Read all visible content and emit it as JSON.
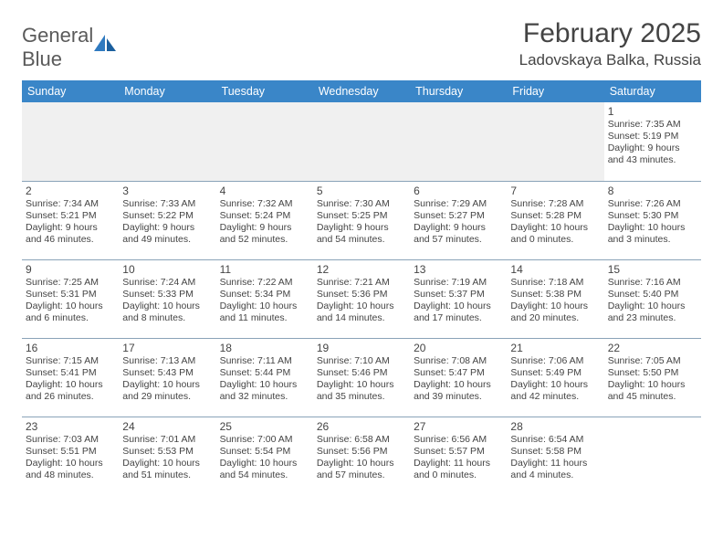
{
  "logo": {
    "part1": "General",
    "part2": "Blue"
  },
  "title": "February 2025",
  "location": "Ladovskaya Balka, Russia",
  "colors": {
    "header_bg": "#3a86c8",
    "header_fg": "#ffffff",
    "rule": "#8aa3b8",
    "logo_blue": "#2f7ac0"
  },
  "day_headers": [
    "Sunday",
    "Monday",
    "Tuesday",
    "Wednesday",
    "Thursday",
    "Friday",
    "Saturday"
  ],
  "weeks": [
    [
      null,
      null,
      null,
      null,
      null,
      null,
      {
        "n": "1",
        "sr": "Sunrise: 7:35 AM",
        "ss": "Sunset: 5:19 PM",
        "dl": "Daylight: 9 hours and 43 minutes."
      }
    ],
    [
      {
        "n": "2",
        "sr": "Sunrise: 7:34 AM",
        "ss": "Sunset: 5:21 PM",
        "dl": "Daylight: 9 hours and 46 minutes."
      },
      {
        "n": "3",
        "sr": "Sunrise: 7:33 AM",
        "ss": "Sunset: 5:22 PM",
        "dl": "Daylight: 9 hours and 49 minutes."
      },
      {
        "n": "4",
        "sr": "Sunrise: 7:32 AM",
        "ss": "Sunset: 5:24 PM",
        "dl": "Daylight: 9 hours and 52 minutes."
      },
      {
        "n": "5",
        "sr": "Sunrise: 7:30 AM",
        "ss": "Sunset: 5:25 PM",
        "dl": "Daylight: 9 hours and 54 minutes."
      },
      {
        "n": "6",
        "sr": "Sunrise: 7:29 AM",
        "ss": "Sunset: 5:27 PM",
        "dl": "Daylight: 9 hours and 57 minutes."
      },
      {
        "n": "7",
        "sr": "Sunrise: 7:28 AM",
        "ss": "Sunset: 5:28 PM",
        "dl": "Daylight: 10 hours and 0 minutes."
      },
      {
        "n": "8",
        "sr": "Sunrise: 7:26 AM",
        "ss": "Sunset: 5:30 PM",
        "dl": "Daylight: 10 hours and 3 minutes."
      }
    ],
    [
      {
        "n": "9",
        "sr": "Sunrise: 7:25 AM",
        "ss": "Sunset: 5:31 PM",
        "dl": "Daylight: 10 hours and 6 minutes."
      },
      {
        "n": "10",
        "sr": "Sunrise: 7:24 AM",
        "ss": "Sunset: 5:33 PM",
        "dl": "Daylight: 10 hours and 8 minutes."
      },
      {
        "n": "11",
        "sr": "Sunrise: 7:22 AM",
        "ss": "Sunset: 5:34 PM",
        "dl": "Daylight: 10 hours and 11 minutes."
      },
      {
        "n": "12",
        "sr": "Sunrise: 7:21 AM",
        "ss": "Sunset: 5:36 PM",
        "dl": "Daylight: 10 hours and 14 minutes."
      },
      {
        "n": "13",
        "sr": "Sunrise: 7:19 AM",
        "ss": "Sunset: 5:37 PM",
        "dl": "Daylight: 10 hours and 17 minutes."
      },
      {
        "n": "14",
        "sr": "Sunrise: 7:18 AM",
        "ss": "Sunset: 5:38 PM",
        "dl": "Daylight: 10 hours and 20 minutes."
      },
      {
        "n": "15",
        "sr": "Sunrise: 7:16 AM",
        "ss": "Sunset: 5:40 PM",
        "dl": "Daylight: 10 hours and 23 minutes."
      }
    ],
    [
      {
        "n": "16",
        "sr": "Sunrise: 7:15 AM",
        "ss": "Sunset: 5:41 PM",
        "dl": "Daylight: 10 hours and 26 minutes."
      },
      {
        "n": "17",
        "sr": "Sunrise: 7:13 AM",
        "ss": "Sunset: 5:43 PM",
        "dl": "Daylight: 10 hours and 29 minutes."
      },
      {
        "n": "18",
        "sr": "Sunrise: 7:11 AM",
        "ss": "Sunset: 5:44 PM",
        "dl": "Daylight: 10 hours and 32 minutes."
      },
      {
        "n": "19",
        "sr": "Sunrise: 7:10 AM",
        "ss": "Sunset: 5:46 PM",
        "dl": "Daylight: 10 hours and 35 minutes."
      },
      {
        "n": "20",
        "sr": "Sunrise: 7:08 AM",
        "ss": "Sunset: 5:47 PM",
        "dl": "Daylight: 10 hours and 39 minutes."
      },
      {
        "n": "21",
        "sr": "Sunrise: 7:06 AM",
        "ss": "Sunset: 5:49 PM",
        "dl": "Daylight: 10 hours and 42 minutes."
      },
      {
        "n": "22",
        "sr": "Sunrise: 7:05 AM",
        "ss": "Sunset: 5:50 PM",
        "dl": "Daylight: 10 hours and 45 minutes."
      }
    ],
    [
      {
        "n": "23",
        "sr": "Sunrise: 7:03 AM",
        "ss": "Sunset: 5:51 PM",
        "dl": "Daylight: 10 hours and 48 minutes."
      },
      {
        "n": "24",
        "sr": "Sunrise: 7:01 AM",
        "ss": "Sunset: 5:53 PM",
        "dl": "Daylight: 10 hours and 51 minutes."
      },
      {
        "n": "25",
        "sr": "Sunrise: 7:00 AM",
        "ss": "Sunset: 5:54 PM",
        "dl": "Daylight: 10 hours and 54 minutes."
      },
      {
        "n": "26",
        "sr": "Sunrise: 6:58 AM",
        "ss": "Sunset: 5:56 PM",
        "dl": "Daylight: 10 hours and 57 minutes."
      },
      {
        "n": "27",
        "sr": "Sunrise: 6:56 AM",
        "ss": "Sunset: 5:57 PM",
        "dl": "Daylight: 11 hours and 0 minutes."
      },
      {
        "n": "28",
        "sr": "Sunrise: 6:54 AM",
        "ss": "Sunset: 5:58 PM",
        "dl": "Daylight: 11 hours and 4 minutes."
      },
      null
    ]
  ]
}
